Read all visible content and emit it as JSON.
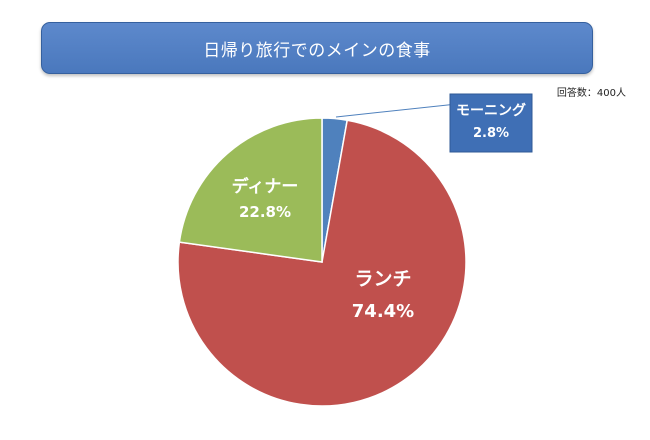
{
  "respondents": "回答数：400人",
  "colors": {
    "morning": "#4f81bd",
    "lunch": "#c0504d",
    "dinner": "#9bbb59",
    "title_bg": "#4f81bd"
  },
  "chart_data": {
    "type": "pie",
    "title": "日帰り旅行でのメインの食事",
    "slices": [
      {
        "label": "モーニング",
        "value": 2.8,
        "value_label": "2.8%",
        "color": "#4f81bd"
      },
      {
        "label": "ランチ",
        "value": 74.4,
        "value_label": "74.4%",
        "color": "#c0504d"
      },
      {
        "label": "ディナー",
        "value": 22.8,
        "value_label": "22.8%",
        "color": "#9bbb59"
      }
    ]
  }
}
